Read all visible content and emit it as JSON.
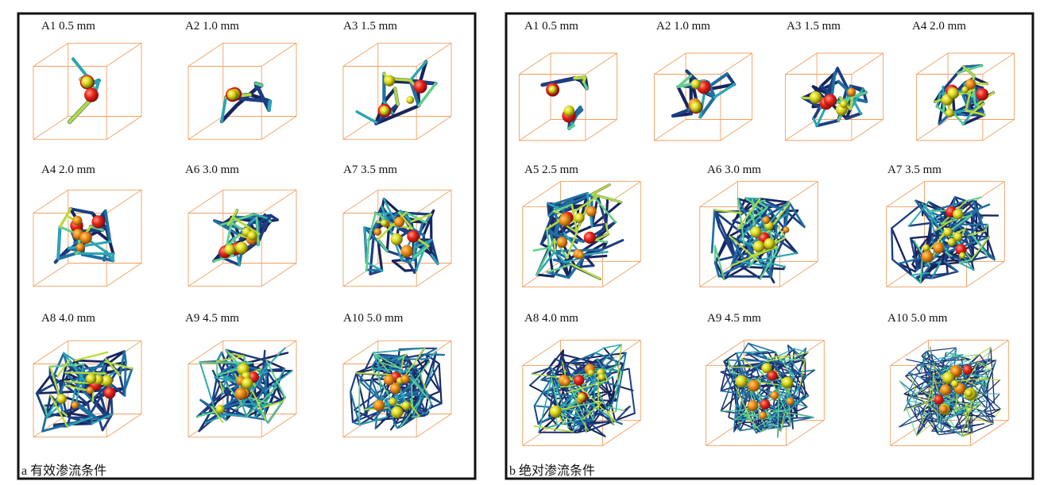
{
  "panel_a": {
    "caption": "a 有效渗流条件",
    "items": [
      "A1 0.5 mm",
      "A2 1.0 mm",
      "A3 1.5 mm",
      "A4 2.0 mm",
      "A6 3.0 mm",
      "A7 3.5 mm",
      "A8 4.0 mm",
      "A9 4.5 mm",
      "A10 5.0 mm"
    ]
  },
  "panel_b": {
    "caption": "b 绝对渗流条件",
    "items": [
      "A1 0.5 mm",
      "A2 1.0 mm",
      "A3 1.5 mm",
      "A4 2.0 mm",
      "A5 2.5 mm",
      "A6 3.0 mm",
      "A7 3.5 mm",
      "A8 4.0 mm",
      "A9 4.5 mm",
      "A10 5.0 mm"
    ]
  }
}
